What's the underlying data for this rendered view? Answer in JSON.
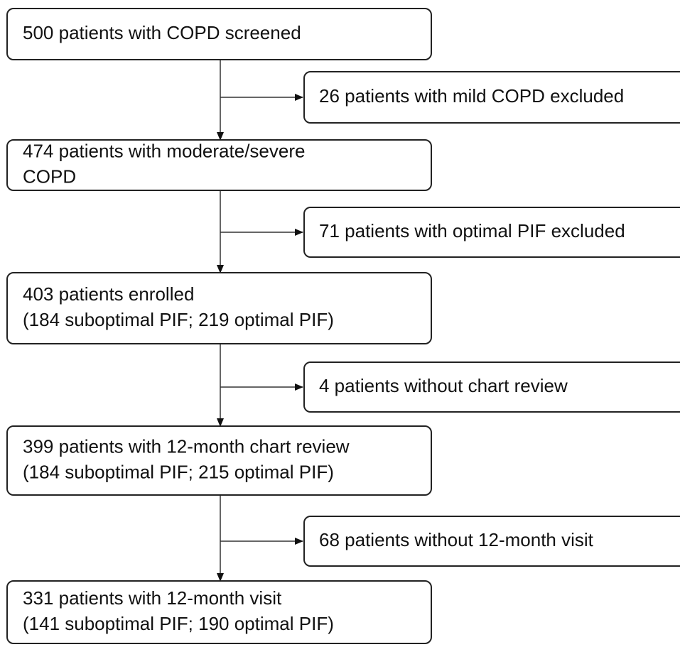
{
  "main_boxes": [
    {
      "lines": [
        "500 patients with COPD screened"
      ]
    },
    {
      "lines": [
        "474 patients with moderate/severe",
        "COPD"
      ]
    },
    {
      "lines": [
        "403 patients enrolled",
        "(184 suboptimal PIF; 219 optimal PIF)"
      ]
    },
    {
      "lines": [
        "399 patients with 12-month chart review",
        "(184 suboptimal PIF; 215 optimal PIF)"
      ]
    },
    {
      "lines": [
        "331 patients with 12-month visit",
        "(141 suboptimal PIF; 190 optimal PIF)"
      ]
    }
  ],
  "exclusions": [
    "26 patients with mild COPD excluded",
    "71 patients with optimal PIF excluded",
    "4 patients without chart review",
    "68 patients without 12-month visit"
  ]
}
